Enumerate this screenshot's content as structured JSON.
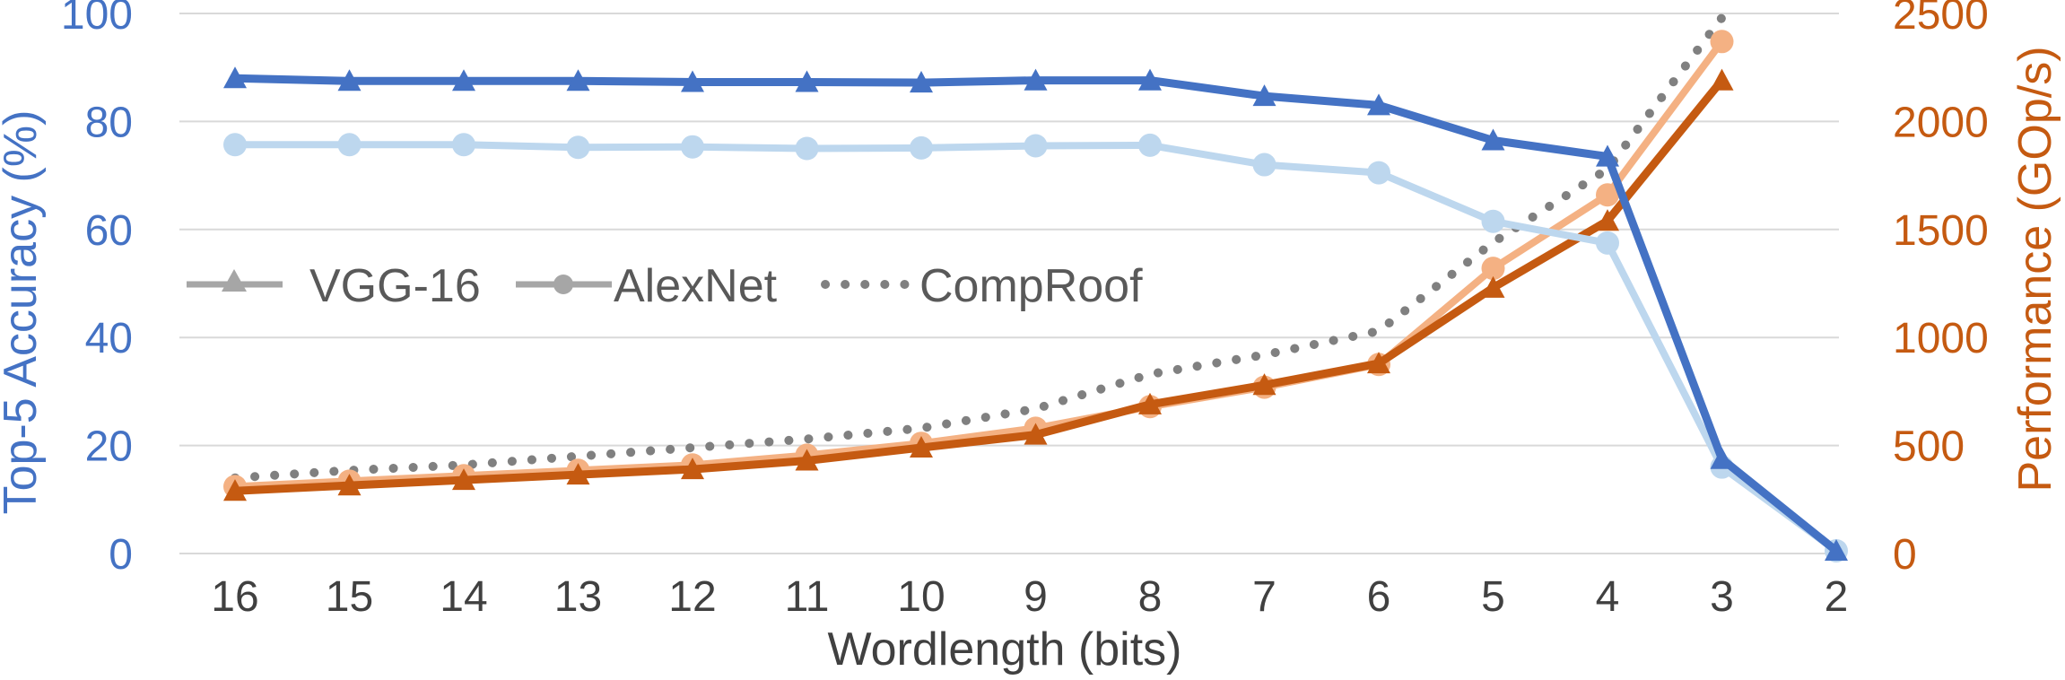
{
  "chart_data": {
    "type": "line",
    "xlabel": "Wordlength (bits)",
    "ylabel_left": "Top-5 Accuracy (%)",
    "ylabel_right": "Performance (GOp/s)",
    "x": [
      "16",
      "15",
      "14",
      "13",
      "12",
      "11",
      "10",
      "9",
      "8",
      "7",
      "6",
      "5",
      "4",
      "3",
      "2"
    ],
    "ylim_left": [
      0,
      100
    ],
    "yticks_left": [
      "0",
      "20",
      "40",
      "60",
      "80",
      "100"
    ],
    "ylim_right": [
      0,
      2500
    ],
    "yticks_right": [
      "0",
      "500",
      "1000",
      "1500",
      "2000",
      "2500"
    ],
    "grid": true,
    "legend": {
      "placement": "center-left",
      "entries": [
        {
          "label": "VGG-16",
          "marker": "triangle",
          "line": "solid"
        },
        {
          "label": "AlexNet",
          "marker": "circle",
          "line": "solid"
        },
        {
          "label": "CompRoof",
          "marker": "none",
          "line": "dotted"
        }
      ]
    },
    "series": [
      {
        "axis": "left",
        "model": "VGG-16",
        "metric": "accuracy",
        "marker": "triangle",
        "color": "#4472C4",
        "values": [
          88,
          87.5,
          87.5,
          87.5,
          87.3,
          87.3,
          87.2,
          87.6,
          87.6,
          84.7,
          83,
          76.5,
          73.5,
          17.5,
          0.5
        ]
      },
      {
        "axis": "left",
        "model": "AlexNet",
        "metric": "accuracy",
        "marker": "circle",
        "color": "#BDD7EE",
        "values": [
          75.7,
          75.7,
          75.7,
          75.2,
          75.3,
          75.0,
          75.1,
          75.5,
          75.6,
          72,
          70.5,
          61.5,
          57.5,
          16,
          0.5
        ]
      },
      {
        "axis": "right",
        "model": "VGG-16",
        "metric": "performance",
        "marker": "triangle",
        "color": "#C55A11",
        "values": [
          290,
          315,
          340,
          365,
          390,
          430,
          490,
          550,
          690,
          780,
          880,
          1230,
          1540,
          2190,
          null
        ]
      },
      {
        "axis": "right",
        "model": "AlexNet",
        "metric": "performance",
        "marker": "circle",
        "color": "#F4B183",
        "values": [
          310,
          335,
          360,
          385,
          410,
          455,
          510,
          580,
          680,
          770,
          875,
          1320,
          1660,
          2370,
          null
        ]
      },
      {
        "axis": "right",
        "model": "CompRoof",
        "metric": "performance",
        "marker": "none",
        "color": "#808080",
        "values": [
          350,
          385,
          410,
          450,
          490,
          530,
          580,
          670,
          830,
          920,
          1030,
          1440,
          1780,
          2480,
          null
        ]
      }
    ]
  }
}
